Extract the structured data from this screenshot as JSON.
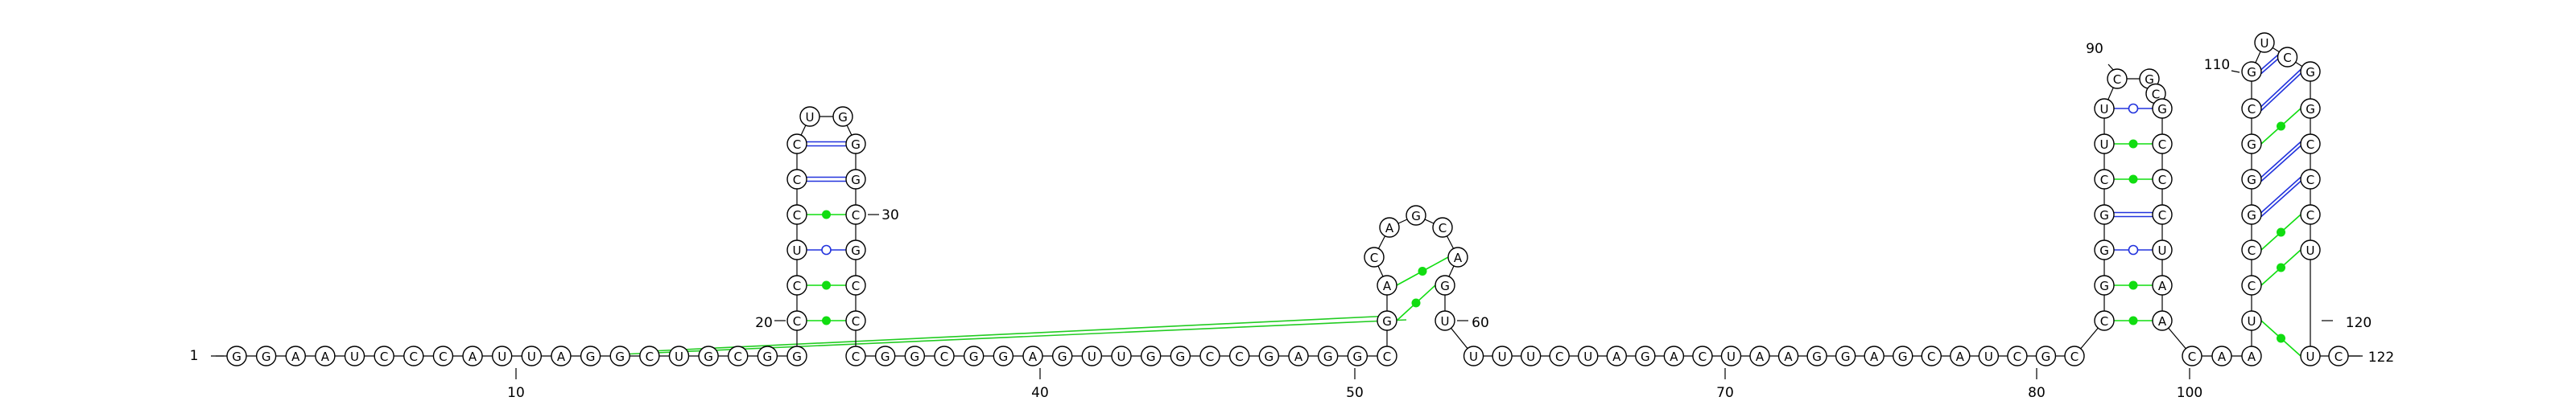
{
  "sequence": "GGAAUCCCAUUAGGCUGCGGCCUCCCUGGGCGCCCGGCGGAGUUGGCCGAGGCGACAGCAGUUUUCUAGACUAAGGAGCAUCGCCGGGCUUCGCGCCCUAACAAUCCGGGCGUCGGCCCUUC",
  "labels": {
    "start": "1",
    "end": "122",
    "n10": "10",
    "n20": "20",
    "n30": "30",
    "n40": "40",
    "n50": "50",
    "n60": "60",
    "n70": "70",
    "n80": "80",
    "n90": "90",
    "n100": "100",
    "n110": "110",
    "n120": "120"
  }
}
